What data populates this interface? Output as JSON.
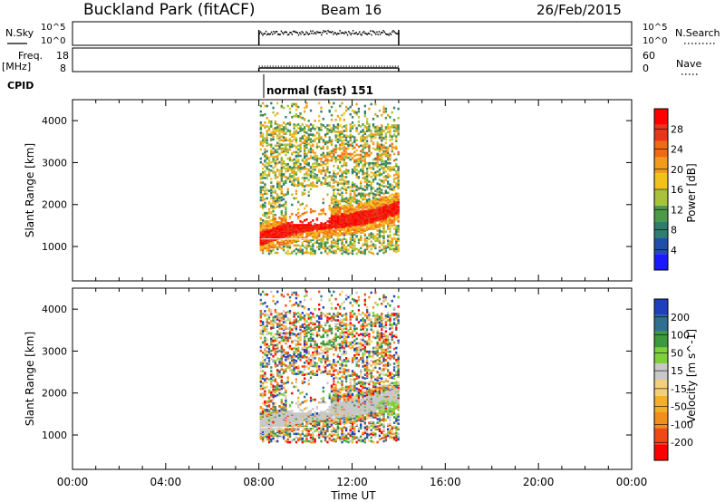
{
  "header": {
    "station": "Buckland Park (fitACF)",
    "beam": "Beam 16",
    "date": "26/Feb/2015"
  },
  "panels": {
    "nsky_label": "N.Sky",
    "nsearch_label": "N.Search",
    "freq_label": "Freq.",
    "freq_unit": "[MHz]",
    "nave_label": "Nave",
    "cpid_label": "CPID",
    "cpid_value": "normal (fast) 151",
    "count_ticks_left": [
      "10^5",
      "10^0"
    ],
    "count_ticks_right": [
      "10^5",
      "10^0"
    ],
    "freq_ticks": [
      "18",
      "8"
    ],
    "nave_ticks": [
      "60",
      "0"
    ]
  },
  "colors": {
    "power_scale": [
      "#1a1aff",
      "#1f4fa8",
      "#2e7d6e",
      "#4a9a4a",
      "#a9c23a",
      "#f2c21c",
      "#f29a1c",
      "#ef6a12",
      "#e8361a",
      "#ff0000"
    ],
    "velocity_scale": [
      "#ff0000",
      "#ef4a16",
      "#f28e1c",
      "#f2b02a",
      "#f2d07a",
      "#c8c8c8",
      "#7ed13a",
      "#3c9a3c",
      "#2f6f8f",
      "#1f3fbf"
    ],
    "velocity_gray": "#c8c8c8"
  },
  "chart_data": [
    {
      "type": "heatmap",
      "title": "Power",
      "xlabel": "Time UT",
      "ylabel": "Slant Range [km]",
      "x_ticks": [
        "00:00",
        "04:00",
        "08:00",
        "12:00",
        "16:00",
        "20:00",
        "00:00"
      ],
      "xlim_hours": [
        0,
        24
      ],
      "ylim_km": [
        180,
        4500
      ],
      "y_ticks": [
        1000,
        2000,
        3000,
        4000
      ],
      "data_window_hours": [
        8.0,
        14.0
      ],
      "colorbar": {
        "label": "Power [dB]",
        "ticks": [
          4,
          8,
          12,
          16,
          20,
          24,
          28
        ],
        "range": [
          0,
          32
        ]
      },
      "features": [
        {
          "name": "strong echo band",
          "start_hour": 8.0,
          "end_hour": 14.0,
          "range_start_km": 1150,
          "range_end_km": 1950,
          "power_db": 28
        },
        {
          "name": "diffuse echoes",
          "start_hour": 8.0,
          "end_hour": 14.0,
          "range_min_km": 800,
          "range_max_km": 3900,
          "power_db": 16
        }
      ]
    },
    {
      "type": "heatmap",
      "title": "Velocity",
      "xlabel": "Time UT",
      "ylabel": "Slant Range [km]",
      "x_ticks": [
        "00:00",
        "04:00",
        "08:00",
        "12:00",
        "16:00",
        "20:00",
        "00:00"
      ],
      "xlim_hours": [
        0,
        24
      ],
      "ylim_km": [
        180,
        4500
      ],
      "y_ticks": [
        1000,
        2000,
        3000,
        4000
      ],
      "data_window_hours": [
        8.0,
        14.0
      ],
      "colorbar": {
        "label": "Velocity [m s^-1]",
        "ticks": [
          200,
          100,
          50,
          15,
          -15,
          -50,
          -100,
          -200
        ],
        "range": [
          -250,
          250
        ]
      }
    }
  ]
}
